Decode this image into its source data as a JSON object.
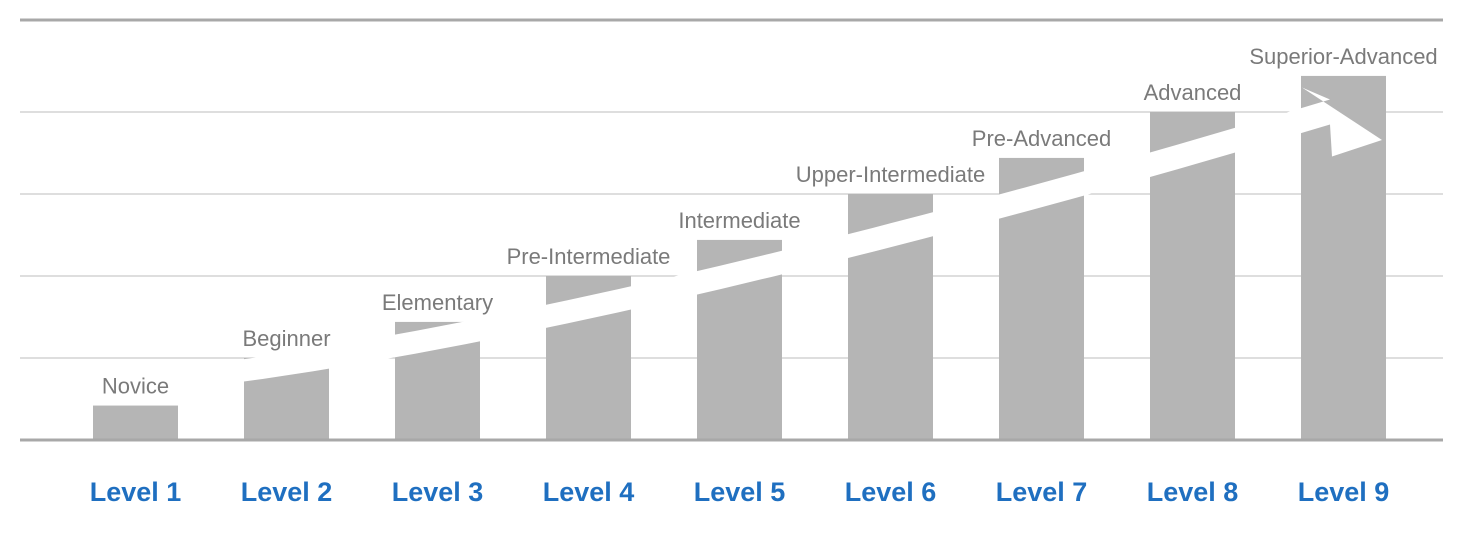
{
  "chart_data": {
    "type": "bar",
    "categories": [
      "Level 1",
      "Level 2",
      "Level 3",
      "Level 4",
      "Level 5",
      "Level 6",
      "Level 7",
      "Level 8",
      "Level 9"
    ],
    "bar_labels": [
      "Novice",
      "Beginner",
      "Elementary",
      "Pre-Intermediate",
      "Intermediate",
      "Upper-Intermediate",
      "Pre-Advanced",
      "Advanced",
      "Superior-Advanced"
    ],
    "values": [
      0.42,
      1.0,
      1.44,
      2.0,
      2.44,
      3.0,
      3.44,
      4.0,
      4.44
    ],
    "ylim": [
      0,
      5
    ],
    "grid": true,
    "legend": "none",
    "colors": {
      "bar": "#b5b5b5",
      "grid": "#bdbdbd",
      "baseline": "#a8a8a8",
      "bar_label": "#7a7a7a",
      "category_label": "#1f6fc0",
      "arrow": "#ffffff"
    }
  }
}
